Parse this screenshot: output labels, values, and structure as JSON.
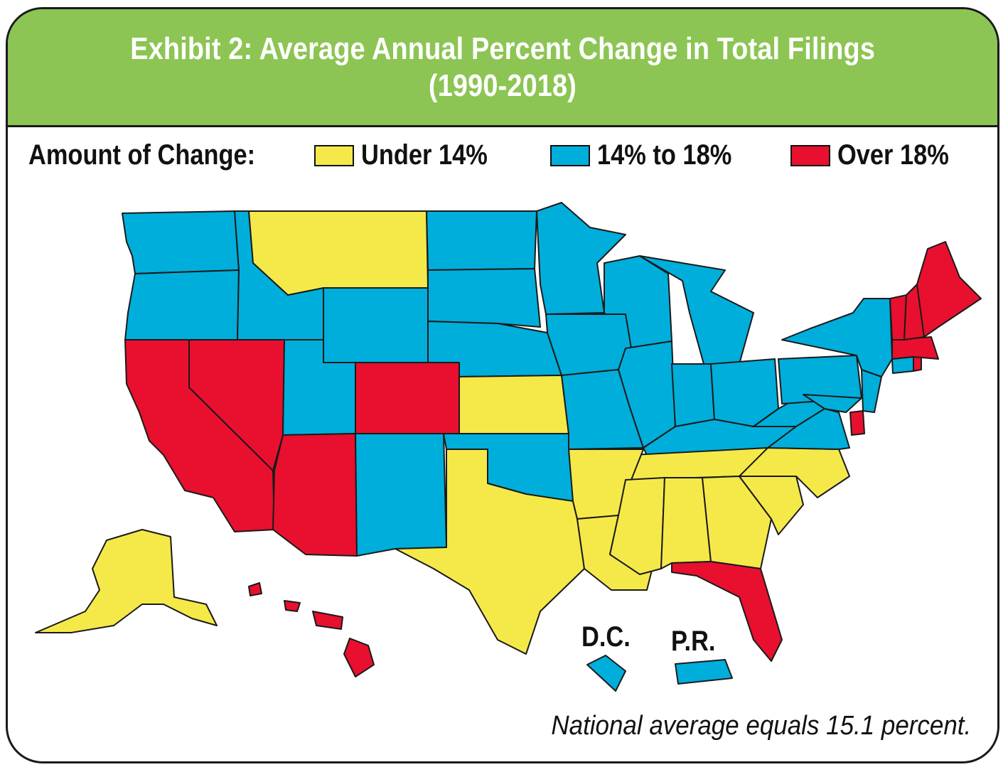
{
  "title": {
    "line1": "Exhibit 2: Average Annual Percent Change in Total Filings",
    "line2": "(1990-2018)"
  },
  "legend": {
    "heading": "Amount of Change:",
    "items": [
      {
        "label": "Under 14%",
        "color": "#f5e94a"
      },
      {
        "label": "14% to 18%",
        "color": "#00aedb"
      },
      {
        "label": "Over 18%",
        "color": "#e8102e"
      }
    ]
  },
  "colors": {
    "header": "#8cc553",
    "under14": "#f5e94a",
    "mid": "#00aedb",
    "over18": "#e8102e"
  },
  "region_categories": {
    "under14": [
      "Montana",
      "Kansas",
      "Texas",
      "Arkansas",
      "Louisiana",
      "Mississippi",
      "Alabama",
      "Georgia",
      "South Carolina",
      "North Carolina",
      "Tennessee",
      "Alaska"
    ],
    "mid": [
      "Washington",
      "Oregon",
      "Idaho",
      "Wyoming",
      "Utah",
      "New Mexico",
      "North Dakota",
      "South Dakota",
      "Nebraska",
      "Oklahoma",
      "Minnesota",
      "Iowa",
      "Missouri",
      "Wisconsin",
      "Illinois",
      "Michigan",
      "Indiana",
      "Ohio",
      "Kentucky",
      "West Virginia",
      "Virginia",
      "Pennsylvania",
      "New York",
      "New Jersey",
      "Maryland",
      "Connecticut",
      "District of Columbia",
      "Puerto Rico"
    ],
    "over18": [
      "California",
      "Nevada",
      "Arizona",
      "Colorado",
      "Florida",
      "Maine",
      "New Hampshire",
      "Vermont",
      "Massachusetts",
      "Rhode Island",
      "Delaware",
      "Hawaii"
    ]
  },
  "labels": {
    "dc": "D.C.",
    "pr": "P.R."
  },
  "note": "National average equals 15.1 percent."
}
